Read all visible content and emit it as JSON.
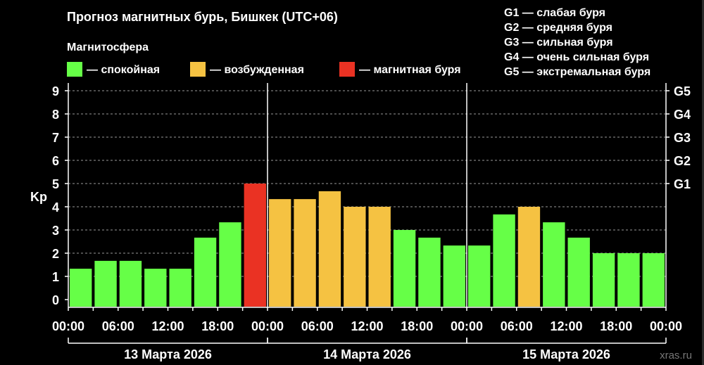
{
  "title": "Прогноз магнитных бурь, Бишкек (UTC+06)",
  "legend_title": "Магнитосфера",
  "legend": [
    {
      "label": "— спокойная",
      "color": "#66ff47"
    },
    {
      "label": "— возбужденная",
      "color": "#f5c242"
    },
    {
      "label": "— магнитная буря",
      "color": "#ea3223"
    }
  ],
  "g_legend": [
    "G1 — слабая буря",
    "G2 — средняя буря",
    "G3 — сильная буря",
    "G4 — очень сильная буря",
    "G5 — экстремальная буря"
  ],
  "watermark": "xras.ru",
  "chart_data": {
    "type": "bar",
    "title": "Прогноз магнитных бурь, Бишкек (UTC+06)",
    "ylabel": "Kp",
    "ylim": [
      0,
      9
    ],
    "yticks": [
      "0",
      "1",
      "2",
      "3",
      "4",
      "5",
      "6",
      "7",
      "8",
      "9"
    ],
    "right_ticks": [
      {
        "value": 5,
        "label": "G1"
      },
      {
        "value": 6,
        "label": "G2"
      },
      {
        "value": 7,
        "label": "G3"
      },
      {
        "value": 8,
        "label": "G4"
      },
      {
        "value": 9,
        "label": "G5"
      }
    ],
    "xtick_labels": [
      "00:00",
      "06:00",
      "12:00",
      "18:00",
      "00:00",
      "06:00",
      "12:00",
      "18:00",
      "00:00",
      "06:00",
      "12:00",
      "18:00",
      "00:00"
    ],
    "days": [
      "13 Марта 2026",
      "14 Марта 2026",
      "15 Марта 2026"
    ],
    "values": [
      1.33,
      1.67,
      1.67,
      1.33,
      1.33,
      2.67,
      3.33,
      5.0,
      4.33,
      4.33,
      4.67,
      4.0,
      4.0,
      3.0,
      2.67,
      2.33,
      2.33,
      3.67,
      4.0,
      3.33,
      2.67,
      2.0,
      2.0,
      2.0
    ],
    "colors": {
      "quiet": "#66ff47",
      "active": "#f5c242",
      "storm": "#ea3223"
    },
    "grid": true
  }
}
